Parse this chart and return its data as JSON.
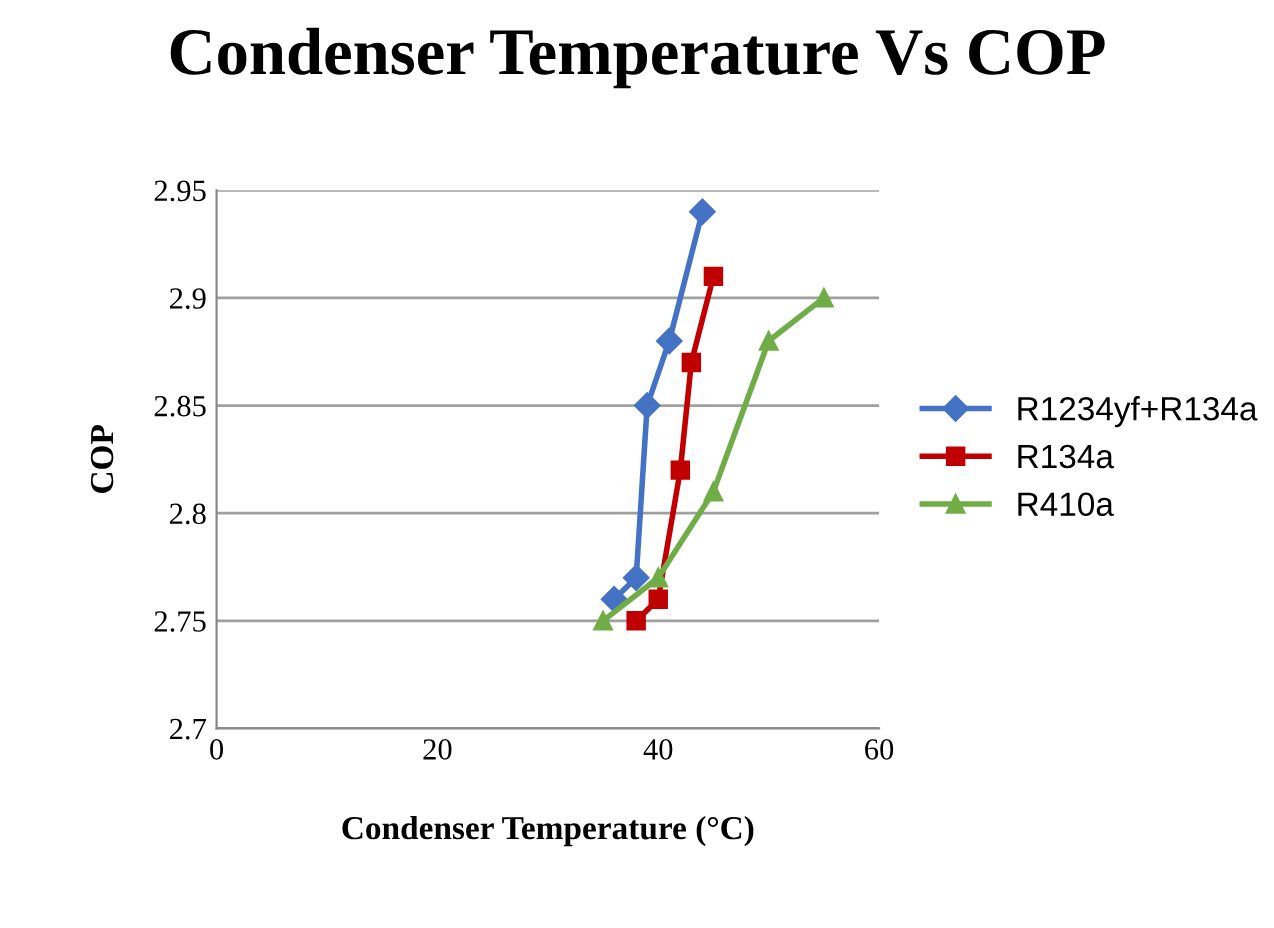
{
  "chart_data": {
    "type": "line",
    "title": "Condenser Temperature Vs COP",
    "xlabel": "Condenser Temperature (°C)",
    "ylabel": "COP",
    "xlim": [
      0,
      60
    ],
    "xticks": [
      0,
      20,
      40,
      60
    ],
    "ylim": [
      2.7,
      2.95
    ],
    "yticks": [
      2.7,
      2.75,
      2.8,
      2.85,
      2.9,
      2.95
    ],
    "grid": "y",
    "legend": "right",
    "series": [
      {
        "name": "R1234yf+R134a",
        "color": "#4472c4",
        "marker": "diamond",
        "x": [
          36,
          38,
          39,
          41,
          44
        ],
        "values": [
          2.76,
          2.77,
          2.85,
          2.88,
          2.94
        ]
      },
      {
        "name": "R134a",
        "color": "#c00000",
        "marker": "square",
        "x": [
          38,
          40,
          42,
          43,
          45
        ],
        "values": [
          2.75,
          2.76,
          2.82,
          2.87,
          2.91
        ]
      },
      {
        "name": "R410a",
        "color": "#70ad47",
        "marker": "triangle",
        "x": [
          35,
          40,
          45,
          50,
          55
        ],
        "values": [
          2.75,
          2.77,
          2.81,
          2.88,
          2.9
        ]
      }
    ]
  }
}
